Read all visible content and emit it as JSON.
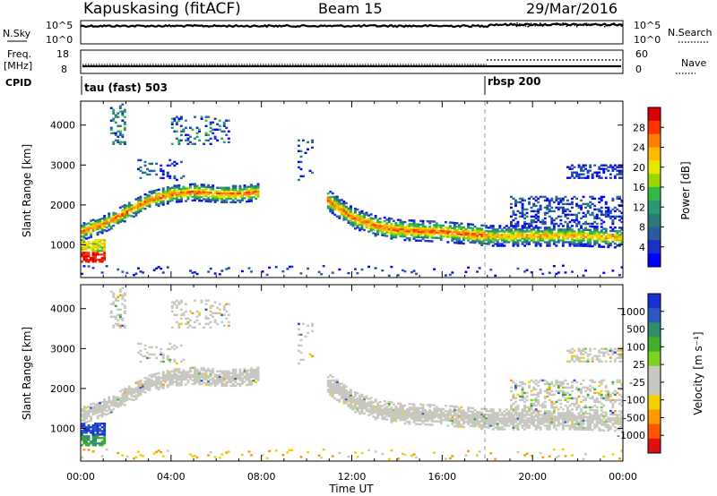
{
  "header": {
    "station": "Kapuskasing (fitACF)",
    "beam": "Beam 15",
    "date": "29/Mar/2016"
  },
  "nsky_panel": {
    "left_label": "N.Sky",
    "right_label": "N.Search",
    "left_ticks": [
      "10^5",
      "10^0"
    ],
    "right_ticks": [
      "10^5",
      "10^0"
    ]
  },
  "freq_panel": {
    "left_label_line1": "Freq.",
    "left_label_line2": "[MHz]",
    "left_ticks": [
      "18",
      "8"
    ],
    "right_label": "Nave",
    "right_ticks": [
      "60",
      "0"
    ]
  },
  "cpid": {
    "label": "CPID",
    "segments": [
      {
        "start_hour": 0,
        "name": "tau (fast) 503"
      },
      {
        "start_hour": 18,
        "name": "rbsp 200"
      }
    ]
  },
  "chart_data": [
    {
      "type": "heatmap",
      "ylabel": "Slant Range [km]",
      "xlabel": "Time UT",
      "x_ticks": [
        "00:00",
        "04:00",
        "08:00",
        "12:00",
        "16:00",
        "20:00",
        "00:00"
      ],
      "xlim_hours": [
        0,
        24
      ],
      "ylim": [
        180,
        4600
      ],
      "y_ticks": [
        1000,
        2000,
        3000,
        4000
      ],
      "colorbar": {
        "label": "Power [dB]",
        "ticks": [
          "28",
          "24",
          "20",
          "16",
          "12",
          "8",
          "4"
        ],
        "colors": [
          "#d90000",
          "#ff3300",
          "#ff8000",
          "#ffbb00",
          "#e6e600",
          "#99d600",
          "#33b84a",
          "#2a9a70",
          "#2a7a7a",
          "#2a5aa0",
          "#1a30c8",
          "#0000ff"
        ]
      },
      "bands": [
        {
          "t": [
            0.0,
            1.0,
            2.0,
            3.0,
            4.0,
            5.0,
            6.0,
            7.0,
            7.8
          ],
          "r": [
            1300,
            1500,
            1800,
            2100,
            2250,
            2300,
            2250,
            2250,
            2300
          ],
          "width_km": 300
        },
        {
          "t": [
            10.9,
            11.5,
            12.0,
            13.0,
            14.0,
            16.0,
            18.0,
            20.0,
            22.0,
            24.0
          ],
          "r": [
            2100,
            1850,
            1650,
            1450,
            1350,
            1300,
            1200,
            1200,
            1200,
            1150
          ],
          "width_km": 380
        }
      ]
    },
    {
      "type": "heatmap",
      "ylabel": "Slant Range [km]",
      "xlabel": "Time UT",
      "x_ticks": [
        "00:00",
        "04:00",
        "08:00",
        "12:00",
        "16:00",
        "20:00",
        "00:00"
      ],
      "xlim_hours": [
        0,
        24
      ],
      "ylim": [
        180,
        4600
      ],
      "y_ticks": [
        1000,
        2000,
        3000,
        4000
      ],
      "colorbar": {
        "label": "Velocity [m s⁻¹]",
        "ticks": [
          "1000",
          "500",
          "100",
          "25",
          "-25",
          "-100",
          "-500",
          "-1000"
        ],
        "colors": [
          "#1a2fd0",
          "#2a5ac0",
          "#2e8f6a",
          "#43b02a",
          "#7ed321",
          "#c8c8c0",
          "#c8c8c0",
          "#f5d000",
          "#ff9900",
          "#ff5500",
          "#e01010"
        ]
      }
    }
  ],
  "time_axis": {
    "ticks": [
      "00:00",
      "04:00",
      "08:00",
      "12:00",
      "16:00",
      "20:00",
      "00:00"
    ],
    "label": "Time UT"
  }
}
